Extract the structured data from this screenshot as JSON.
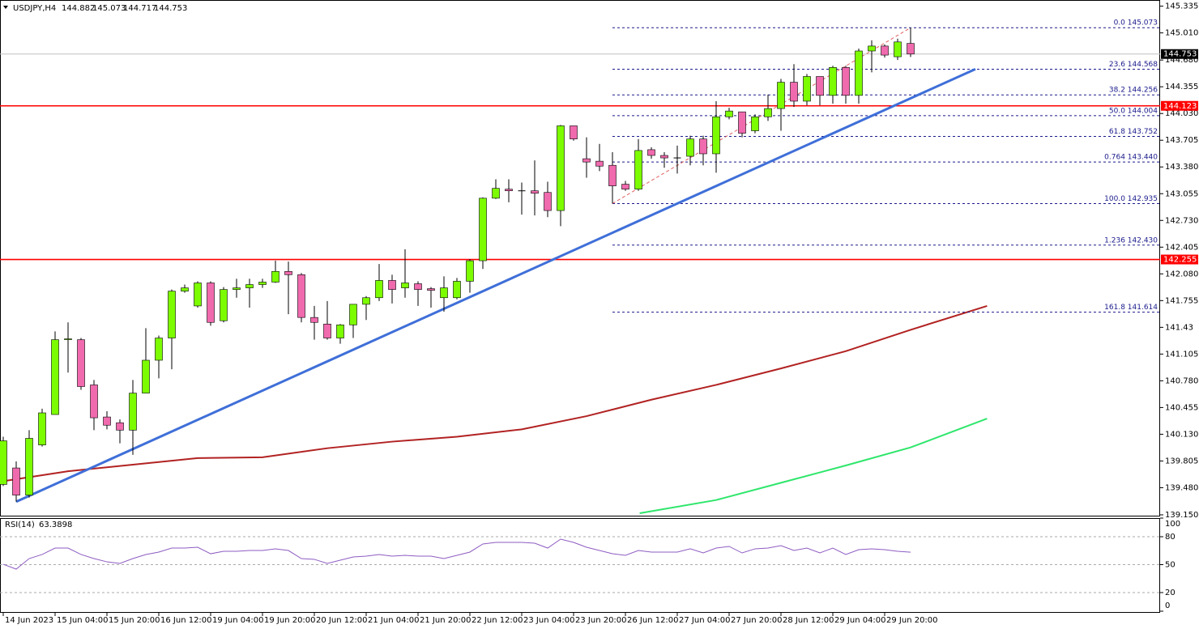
{
  "chart_data": {
    "type": "candlestick",
    "symbol": "USDJPY,H4",
    "xlim": [
      -0.25,
      89.25
    ],
    "xticks": [
      {
        "value": 0,
        "label": "14 Jun 2023"
      },
      {
        "value": 4,
        "label": "15 Jun 04:00"
      },
      {
        "value": 8,
        "label": "15 Jun 20:00"
      },
      {
        "value": 12,
        "label": "16 Jun 12:00"
      },
      {
        "value": 16,
        "label": "19 Jun 04:00"
      },
      {
        "value": 20,
        "label": "19 Jun 20:00"
      },
      {
        "value": 24,
        "label": "20 Jun 12:00"
      },
      {
        "value": 28,
        "label": "21 Jun 04:00"
      },
      {
        "value": 32,
        "label": "21 Jun 20:00"
      },
      {
        "value": 36,
        "label": "22 Jun 12:00"
      },
      {
        "value": 40,
        "label": "23 Jun 04:00"
      },
      {
        "value": 44,
        "label": "23 Jun 20:00"
      },
      {
        "value": 48,
        "label": "26 Jun 12:00"
      },
      {
        "value": 52,
        "label": "27 Jun 04:00"
      },
      {
        "value": 56,
        "label": "27 Jun 20:00"
      },
      {
        "value": 60,
        "label": "28 Jun 12:00"
      },
      {
        "value": 64,
        "label": "29 Jun 04:00"
      },
      {
        "value": 68,
        "label": "29 Jun 20:00"
      }
    ],
    "ylim": [
      139.14,
      145.41
    ],
    "yticks": [
      145.335,
      {
        "value": 145.01,
        "label": "145.010"
      },
      {
        "value": 144.68,
        "label": "144.680"
      },
      144.355,
      {
        "value": 144.03,
        "label": "144.030"
      },
      143.705,
      {
        "value": 143.38,
        "label": "143.380"
      },
      143.055,
      {
        "value": 142.73,
        "label": "142.730"
      },
      142.405,
      {
        "value": 142.08,
        "label": "142.080"
      },
      141.755,
      141.43,
      141.105,
      {
        "value": 140.78,
        "label": "140.780"
      },
      140.455,
      {
        "value": 140.13,
        "label": "140.130"
      },
      139.805,
      {
        "value": 139.48,
        "label": "139.480"
      },
      {
        "value": 139.15,
        "label": "139.150"
      }
    ],
    "up_color": "#7cfc00",
    "down_color": "#f06aae",
    "open": [
      139.52,
      139.72,
      139.39,
      140.0,
      140.37,
      141.28,
      141.28,
      140.73,
      140.34,
      140.27,
      140.18,
      140.63,
      141.03,
      141.3,
      141.87,
      141.69,
      141.97,
      141.51,
      141.89,
      141.91,
      141.95,
      141.98,
      142.11,
      142.07,
      141.55,
      141.47,
      141.3,
      141.46,
      141.71,
      141.79,
      142.0,
      141.91,
      141.96,
      141.9,
      141.79,
      141.79,
      141.99,
      142.24,
      143.0,
      143.11,
      143.09,
      143.09,
      143.07,
      142.85,
      143.88,
      143.48,
      143.45,
      143.4,
      143.17,
      143.11,
      143.59,
      143.52,
      143.49,
      143.51,
      143.72,
      143.54,
      143.99,
      144.05,
      143.82,
      143.99,
      144.09,
      144.41,
      144.18,
      144.48,
      144.25,
      144.59,
      144.25,
      144.79,
      144.85,
      144.72,
      144.882
    ],
    "high": [
      140.1,
      139.8,
      140.18,
      140.44,
      141.38,
      141.49,
      141.3,
      140.79,
      140.41,
      140.31,
      140.79,
      141.42,
      141.33,
      141.89,
      141.95,
      141.99,
      141.99,
      141.92,
      142.02,
      142.02,
      142.02,
      142.24,
      142.23,
      142.09,
      141.69,
      141.75,
      141.47,
      141.71,
      141.81,
      142.2,
      142.07,
      142.38,
      141.99,
      141.92,
      142.05,
      142.03,
      142.26,
      143.01,
      143.23,
      143.23,
      143.19,
      143.46,
      143.2,
      143.89,
      143.88,
      143.74,
      143.66,
      143.56,
      143.21,
      143.72,
      143.62,
      143.56,
      143.64,
      143.76,
      143.76,
      144.18,
      144.1,
      144.05,
      144.02,
      144.26,
      144.45,
      144.63,
      144.51,
      144.48,
      144.61,
      144.61,
      144.82,
      144.92,
      144.87,
      144.94,
      145.073
    ],
    "low": [
      139.5,
      139.31,
      139.36,
      139.98,
      140.37,
      140.88,
      140.67,
      140.18,
      140.19,
      140.02,
      139.88,
      140.63,
      140.81,
      140.92,
      141.85,
      141.67,
      141.45,
      141.49,
      141.79,
      141.67,
      141.91,
      141.97,
      141.59,
      141.49,
      141.28,
      141.28,
      141.23,
      141.3,
      141.52,
      141.75,
      141.72,
      141.79,
      141.69,
      141.67,
      141.62,
      141.77,
      141.85,
      142.14,
      142.99,
      142.95,
      142.8,
      142.79,
      142.77,
      142.66,
      143.7,
      143.25,
      143.33,
      142.935,
      143.09,
      143.09,
      143.48,
      143.37,
      143.3,
      143.4,
      143.4,
      143.31,
      143.96,
      143.74,
      143.79,
      143.94,
      143.82,
      144.11,
      144.13,
      144.13,
      144.15,
      144.15,
      144.15,
      144.53,
      144.71,
      144.68,
      144.717
    ],
    "close": [
      140.05,
      139.39,
      140.08,
      140.39,
      141.28,
      141.29,
      140.71,
      140.33,
      140.24,
      140.18,
      140.63,
      141.03,
      141.3,
      141.87,
      141.91,
      141.97,
      141.49,
      141.89,
      141.91,
      141.95,
      141.98,
      142.11,
      142.07,
      141.55,
      141.49,
      141.3,
      141.46,
      141.71,
      141.79,
      142.0,
      141.89,
      141.97,
      141.89,
      141.88,
      141.91,
      141.99,
      142.24,
      143.0,
      143.12,
      143.09,
      143.09,
      143.06,
      142.85,
      143.88,
      143.72,
      143.44,
      143.39,
      143.15,
      143.11,
      143.58,
      143.52,
      143.49,
      143.49,
      143.72,
      143.54,
      143.99,
      144.06,
      143.79,
      143.99,
      144.09,
      144.41,
      144.18,
      144.48,
      144.25,
      144.59,
      144.25,
      144.79,
      144.85,
      144.74,
      144.9,
      144.753
    ],
    "current_price_color": "#c0c0c0",
    "hlines": [
      {
        "value": 144.123,
        "color": "#ff0000"
      },
      {
        "value": 142.255,
        "color": "#ff0000"
      }
    ],
    "fib_color": "#1a1a8c",
    "fib_anchor": {
      "x": [
        47,
        70
      ],
      "y": [
        142.935,
        145.073
      ],
      "color": "#e06060"
    },
    "fib_levels": [
      {
        "label": "0.0 145.073",
        "value": 145.073
      },
      {
        "label": "23.6 144.568",
        "value": 144.568
      },
      {
        "label": "38.2 144.256",
        "value": 144.256
      },
      {
        "label": "50.0 144.004",
        "value": 144.004
      },
      {
        "label": "61.8 143.752",
        "value": 143.752
      },
      {
        "label": "0.764 143.440",
        "value": 143.44
      },
      {
        "label": "100.0 142.935",
        "value": 142.935
      },
      {
        "label": "1.236 142.430",
        "value": 142.43
      },
      {
        "label": "161.8 141.614",
        "value": 141.614
      }
    ],
    "trendline": {
      "x": [
        1,
        75
      ],
      "y": [
        139.31,
        144.57
      ],
      "color": "#3f6fd8"
    },
    "lines": [
      {
        "color": "#b22222",
        "x": [
          0,
          5,
          10,
          15,
          20,
          25,
          30,
          35,
          40,
          45,
          50,
          55,
          60,
          65,
          70,
          75.9
        ],
        "values": [
          139.56,
          139.68,
          139.76,
          139.84,
          139.85,
          139.96,
          140.04,
          140.1,
          140.19,
          140.35,
          140.55,
          140.73,
          140.93,
          141.14,
          141.4,
          141.69
        ]
      },
      {
        "color": "#2ee66b",
        "x": [
          49.1,
          55,
          60,
          65,
          70,
          75.9
        ],
        "values": [
          139.17,
          139.33,
          139.54,
          139.75,
          139.97,
          140.32
        ]
      }
    ],
    "rsi": {
      "label": "RSI(14)",
      "color": "#8e5cc2",
      "ylim": [
        0,
        100
      ],
      "yticks": [
        0,
        20,
        50,
        80,
        100
      ],
      "levels": [
        20,
        50,
        80
      ],
      "values": [
        50.4,
        45.2,
        56.5,
        60.9,
        67.8,
        67.8,
        60.9,
        56.5,
        53.0,
        51.3,
        56.5,
        60.9,
        63.5,
        67.8,
        67.8,
        68.7,
        61.7,
        64.3,
        64.3,
        65.2,
        65.2,
        67.0,
        65.2,
        56.5,
        55.7,
        51.3,
        54.8,
        58.3,
        59.1,
        60.9,
        59.1,
        60.0,
        59.1,
        59.1,
        56.5,
        60.0,
        63.5,
        72.2,
        73.9,
        73.9,
        73.9,
        73.0,
        67.8,
        77.4,
        73.9,
        68.7,
        65.2,
        61.7,
        60.0,
        65.2,
        63.5,
        63.5,
        63.5,
        67.0,
        62.6,
        67.8,
        69.6,
        62.6,
        67.0,
        67.8,
        70.4,
        65.2,
        67.8,
        62.6,
        67.8,
        60.9,
        66.1,
        67.0,
        66.1,
        64.3,
        63.3898
      ]
    }
  }
}
